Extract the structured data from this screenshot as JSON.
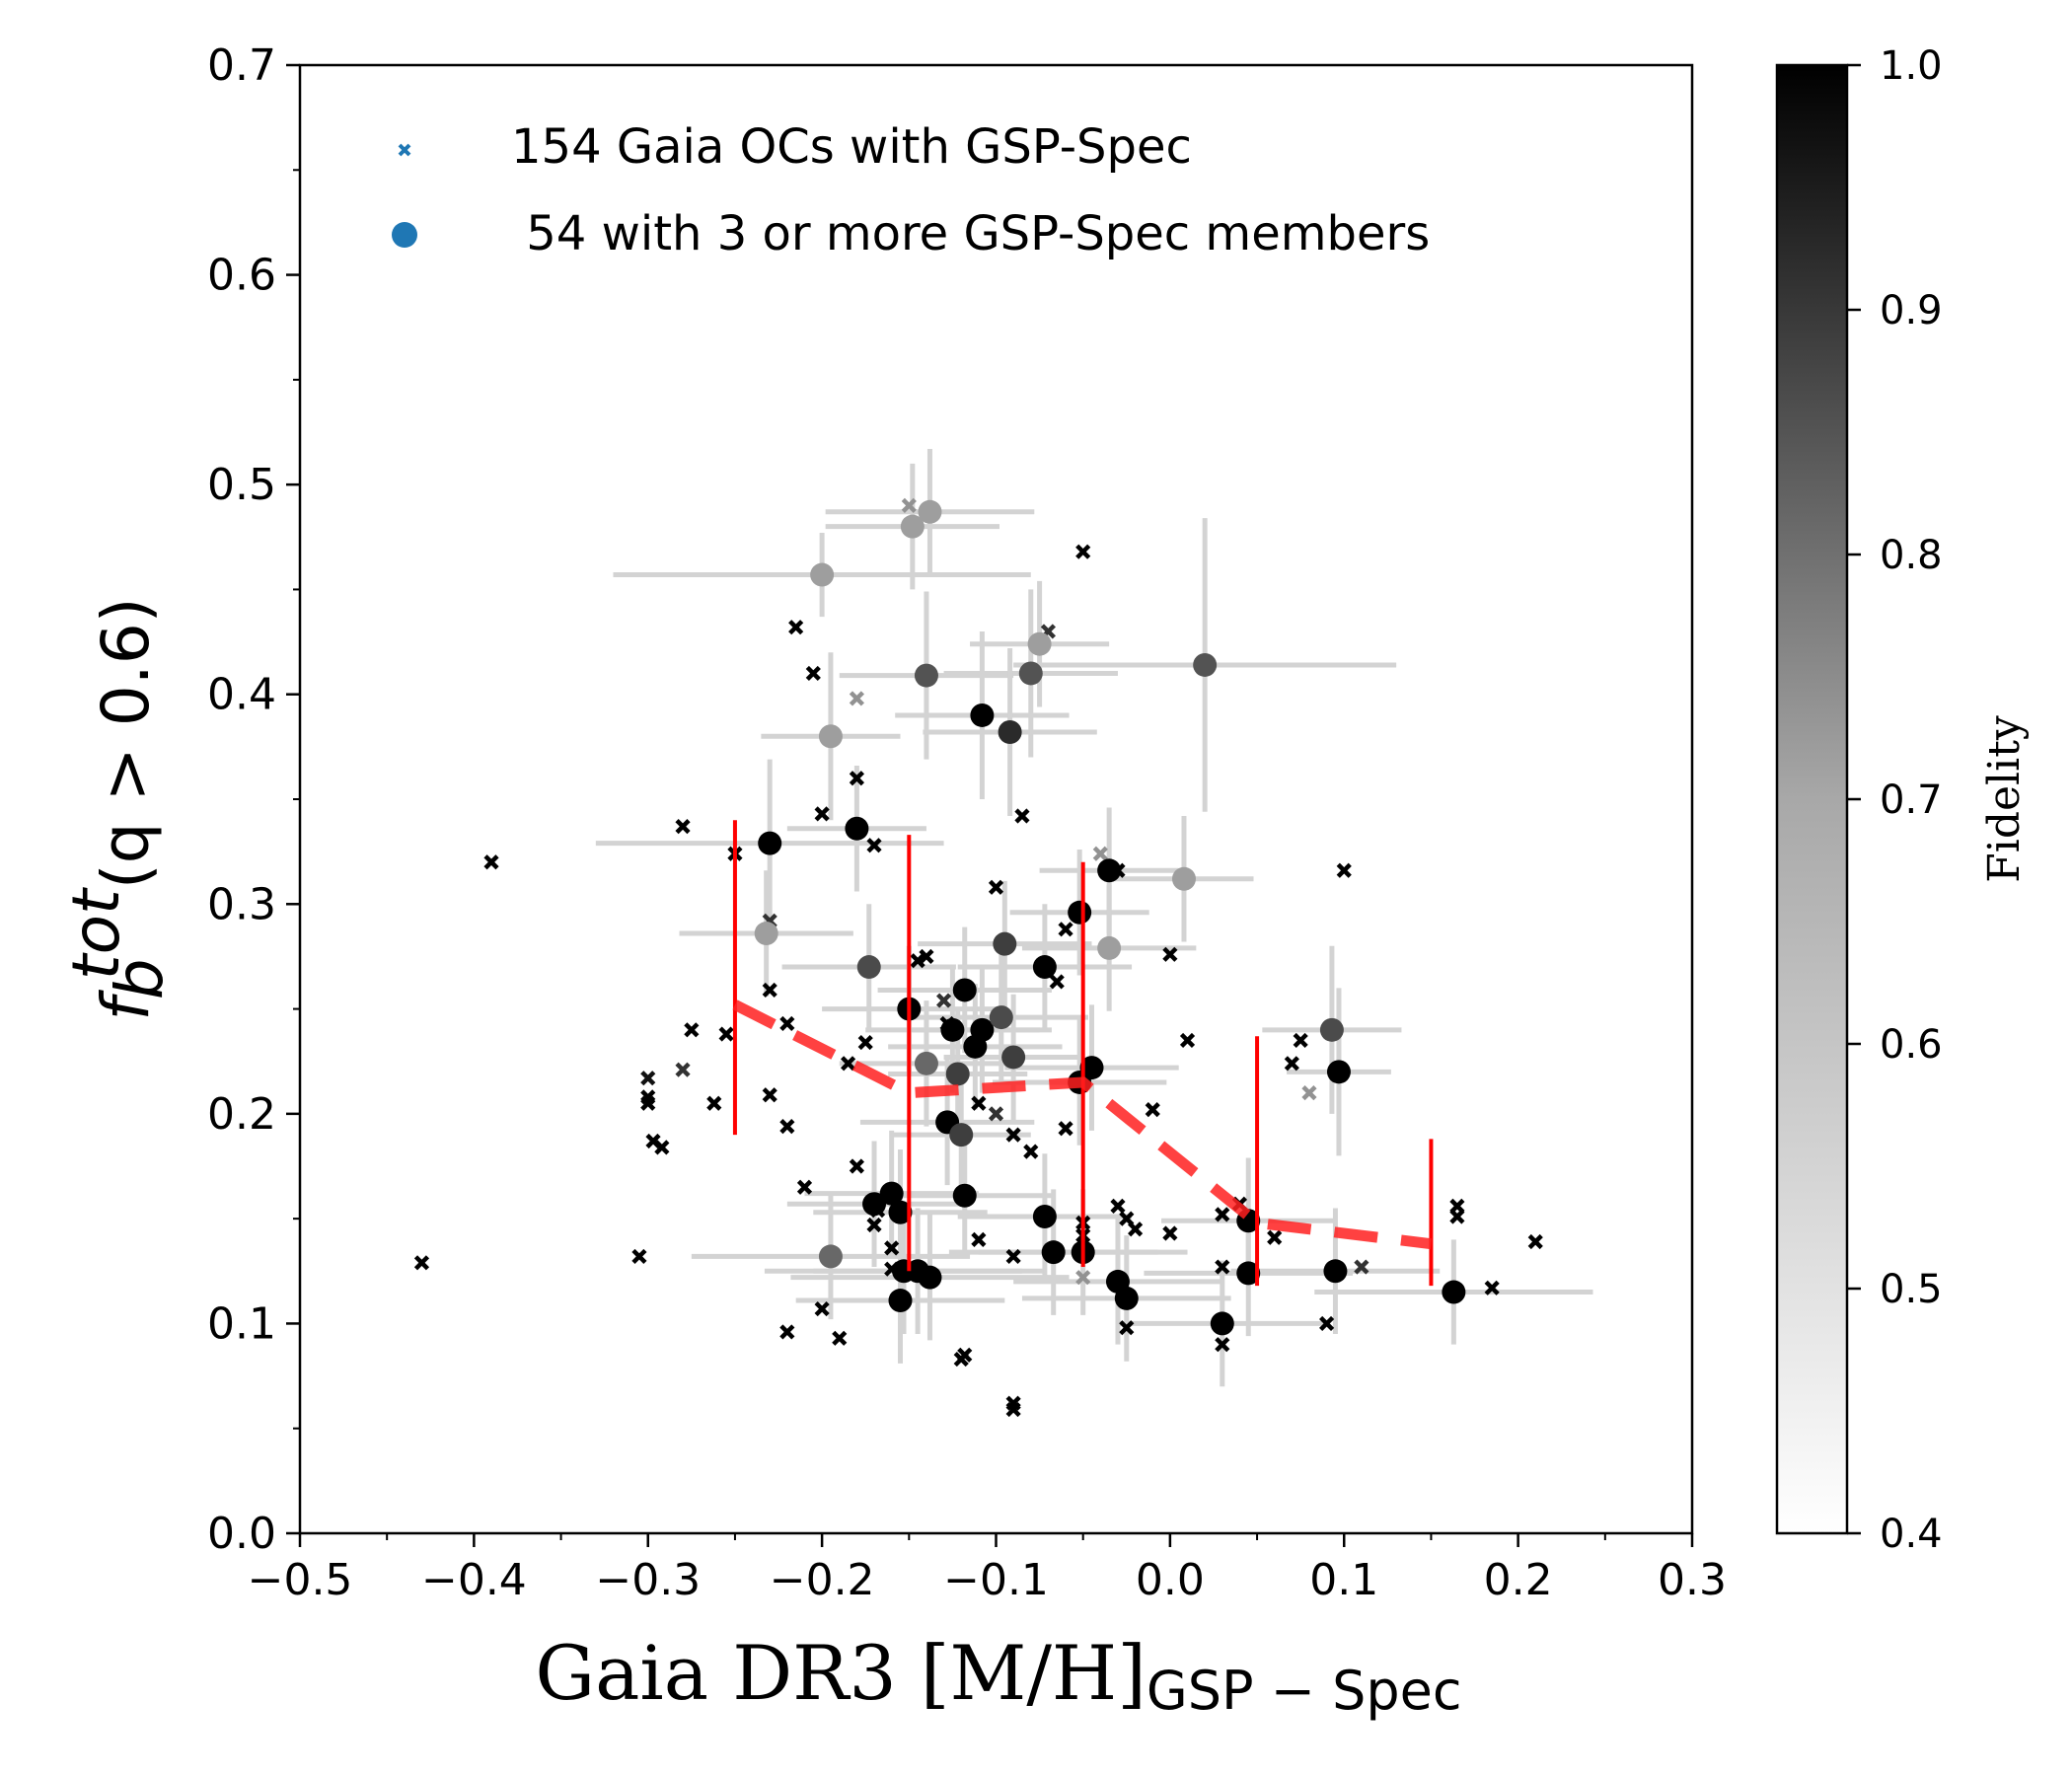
{
  "chart_data": {
    "type": "scatter",
    "xlabel": "Gaia DR3 [M/H]",
    "xlabel_sub": "GSP − Spec",
    "ylabel_f": "f",
    "ylabel_sub": "b",
    "ylabel_sup": "tot",
    "ylabel_rest": "(q > 0.6)",
    "xlim": [
      -0.5,
      0.3
    ],
    "ylim": [
      0.0,
      0.7
    ],
    "xticks": [
      -0.5,
      -0.4,
      -0.3,
      -0.2,
      -0.1,
      0.0,
      0.1,
      0.2,
      0.3
    ],
    "xtick_labels": [
      "−0.5",
      "−0.4",
      "−0.3",
      "−0.2",
      "−0.1",
      "0.0",
      "0.1",
      "0.2",
      "0.3"
    ],
    "yticks": [
      0.0,
      0.1,
      0.2,
      0.3,
      0.4,
      0.5,
      0.6,
      0.7
    ],
    "ytick_labels": [
      "0.0",
      "0.1",
      "0.2",
      "0.3",
      "0.4",
      "0.5",
      "0.6",
      "0.7"
    ],
    "grid": false,
    "legend_position": "top-left",
    "legend": [
      {
        "label": "154 Gaia OCs with GSP-Spec",
        "marker": "x",
        "color": "#1f77b4"
      },
      {
        "label": " 54 with 3 or more GSP-Spec members",
        "marker": "o",
        "color": "#1f77b4"
      }
    ],
    "colorbar": {
      "label": "Fidelity",
      "range": [
        0.4,
        1.0
      ],
      "ticks": [
        0.4,
        0.5,
        0.6,
        0.7,
        0.8,
        0.9,
        1.0
      ],
      "tick_labels": [
        "0.4",
        "0.5",
        "0.6",
        "0.7",
        "0.8",
        "0.9",
        "1.0"
      ],
      "colormap": "Greys"
    },
    "series": [
      {
        "name": "154 Gaia OCs with GSP-Spec",
        "marker": "x",
        "points": [
          [
            -0.43,
            0.129,
            1.0
          ],
          [
            -0.39,
            0.32,
            1.0
          ],
          [
            -0.305,
            0.132,
            1.0
          ],
          [
            -0.3,
            0.217,
            0.96
          ],
          [
            -0.3,
            0.208,
            1.0
          ],
          [
            -0.3,
            0.205,
            1.0
          ],
          [
            -0.297,
            0.187,
            1.0
          ],
          [
            -0.292,
            0.184,
            1.0
          ],
          [
            -0.28,
            0.337,
            1.0
          ],
          [
            -0.28,
            0.221,
            0.88
          ],
          [
            -0.275,
            0.24,
            1.0
          ],
          [
            -0.262,
            0.205,
            1.0
          ],
          [
            -0.255,
            0.238,
            1.0
          ],
          [
            -0.25,
            0.324,
            1.0
          ],
          [
            -0.23,
            0.292,
            0.88
          ],
          [
            -0.23,
            0.259,
            1.0
          ],
          [
            -0.23,
            0.209,
            1.0
          ],
          [
            -0.22,
            0.243,
            1.0
          ],
          [
            -0.22,
            0.194,
            1.0
          ],
          [
            -0.22,
            0.096,
            1.0
          ],
          [
            -0.215,
            0.432,
            1.0
          ],
          [
            -0.21,
            0.165,
            1.0
          ],
          [
            -0.205,
            0.41,
            1.0
          ],
          [
            -0.2,
            0.343,
            1.0
          ],
          [
            -0.2,
            0.107,
            1.0
          ],
          [
            -0.19,
            0.093,
            1.0
          ],
          [
            -0.185,
            0.224,
            1.0
          ],
          [
            -0.18,
            0.36,
            1.0
          ],
          [
            -0.18,
            0.175,
            1.0
          ],
          [
            -0.18,
            0.398,
            0.65
          ],
          [
            -0.175,
            0.234,
            1.0
          ],
          [
            -0.17,
            0.328,
            1.0
          ],
          [
            -0.17,
            0.147,
            1.0
          ],
          [
            -0.168,
            0.154,
            1.0
          ],
          [
            -0.16,
            0.126,
            1.0
          ],
          [
            -0.16,
            0.136,
            1.0
          ],
          [
            -0.15,
            0.49,
            0.65
          ],
          [
            -0.145,
            0.273,
            1.0
          ],
          [
            -0.14,
            0.275,
            1.0
          ],
          [
            -0.13,
            0.254,
            0.88
          ],
          [
            -0.128,
            0.243,
            1.0
          ],
          [
            -0.12,
            0.083,
            1.0
          ],
          [
            -0.118,
            0.085,
            1.0
          ],
          [
            -0.11,
            0.14,
            1.0
          ],
          [
            -0.11,
            0.205,
            1.0
          ],
          [
            -0.1,
            0.308,
            1.0
          ],
          [
            -0.1,
            0.2,
            0.88
          ],
          [
            -0.09,
            0.062,
            1.0
          ],
          [
            -0.09,
            0.059,
            1.0
          ],
          [
            -0.09,
            0.132,
            1.0
          ],
          [
            -0.09,
            0.19,
            1.0
          ],
          [
            -0.085,
            0.342,
            1.0
          ],
          [
            -0.08,
            0.182,
            1.0
          ],
          [
            -0.07,
            0.43,
            0.88
          ],
          [
            -0.065,
            0.263,
            1.0
          ],
          [
            -0.06,
            0.193,
            1.0
          ],
          [
            -0.06,
            0.288,
            1.0
          ],
          [
            -0.05,
            0.122,
            0.65
          ],
          [
            -0.05,
            0.142,
            1.0
          ],
          [
            -0.05,
            0.148,
            1.0
          ],
          [
            -0.05,
            0.468,
            1.0
          ],
          [
            -0.04,
            0.324,
            0.65
          ],
          [
            -0.03,
            0.156,
            1.0
          ],
          [
            -0.03,
            0.316,
            1.0
          ],
          [
            -0.025,
            0.15,
            1.0
          ],
          [
            -0.025,
            0.098,
            1.0
          ],
          [
            -0.02,
            0.145,
            1.0
          ],
          [
            -0.01,
            0.202,
            1.0
          ],
          [
            0.0,
            0.143,
            1.0
          ],
          [
            0.0,
            0.276,
            1.0
          ],
          [
            0.01,
            0.235,
            1.0
          ],
          [
            0.03,
            0.152,
            1.0
          ],
          [
            0.03,
            0.09,
            1.0
          ],
          [
            0.03,
            0.127,
            1.0
          ],
          [
            0.04,
            0.157,
            1.0
          ],
          [
            0.06,
            0.141,
            1.0
          ],
          [
            0.07,
            0.224,
            1.0
          ],
          [
            0.075,
            0.235,
            1.0
          ],
          [
            0.08,
            0.21,
            0.65
          ],
          [
            0.09,
            0.1,
            1.0
          ],
          [
            0.1,
            0.316,
            1.0
          ],
          [
            0.11,
            0.127,
            0.88
          ],
          [
            0.165,
            0.156,
            1.0
          ],
          [
            0.165,
            0.151,
            1.0
          ],
          [
            0.185,
            0.117,
            1.0
          ],
          [
            0.21,
            0.139,
            1.0
          ]
        ]
      },
      {
        "name": " 54 with 3 or more GSP-Spec members",
        "marker": "o",
        "points": [
          [
            -0.2,
            0.457,
            0.62,
            0.12,
            0.02
          ],
          [
            -0.148,
            0.48,
            0.62,
            0.05,
            0.03
          ],
          [
            -0.138,
            0.487,
            0.62,
            0.06,
            0.03
          ],
          [
            -0.075,
            0.424,
            0.62,
            0.04,
            0.03
          ],
          [
            -0.14,
            0.409,
            0.8,
            0.05,
            0.04
          ],
          [
            -0.08,
            0.41,
            0.8,
            0.05,
            0.04
          ],
          [
            0.02,
            0.414,
            0.8,
            0.11,
            0.07
          ],
          [
            -0.195,
            0.38,
            0.62,
            0.04,
            0.04
          ],
          [
            -0.108,
            0.39,
            1.0,
            0.05,
            0.04
          ],
          [
            -0.092,
            0.382,
            0.9,
            0.05,
            0.04
          ],
          [
            -0.23,
            0.329,
            1.0,
            0.1,
            0.04
          ],
          [
            -0.18,
            0.336,
            1.0,
            0.04,
            0.03
          ],
          [
            -0.035,
            0.316,
            1.0,
            0.04,
            0.03
          ],
          [
            0.008,
            0.312,
            0.62,
            0.04,
            0.03
          ],
          [
            -0.052,
            0.296,
            1.0,
            0.04,
            0.03
          ],
          [
            -0.232,
            0.286,
            0.62,
            0.05,
            0.03
          ],
          [
            -0.035,
            0.279,
            0.62,
            0.05,
            0.03
          ],
          [
            -0.095,
            0.281,
            0.85,
            0.05,
            0.03
          ],
          [
            -0.072,
            0.27,
            1.0,
            0.05,
            0.03
          ],
          [
            -0.173,
            0.27,
            0.82,
            0.05,
            0.03
          ],
          [
            -0.118,
            0.259,
            1.0,
            0.05,
            0.03
          ],
          [
            -0.15,
            0.25,
            1.0,
            0.05,
            0.03
          ],
          [
            -0.125,
            0.24,
            1.0,
            0.05,
            0.03
          ],
          [
            -0.108,
            0.24,
            1.0,
            0.04,
            0.03
          ],
          [
            -0.097,
            0.246,
            0.82,
            0.05,
            0.03
          ],
          [
            -0.112,
            0.232,
            1.0,
            0.05,
            0.03
          ],
          [
            -0.09,
            0.227,
            0.85,
            0.04,
            0.03
          ],
          [
            -0.14,
            0.224,
            0.75,
            0.05,
            0.03
          ],
          [
            -0.122,
            0.219,
            0.85,
            0.04,
            0.03
          ],
          [
            -0.052,
            0.215,
            1.0,
            0.05,
            0.03
          ],
          [
            -0.045,
            0.222,
            1.0,
            0.05,
            0.03
          ],
          [
            0.093,
            0.24,
            0.82,
            0.04,
            0.04
          ],
          [
            0.097,
            0.22,
            1.0,
            0.03,
            0.04
          ],
          [
            -0.128,
            0.196,
            1.0,
            0.05,
            0.03
          ],
          [
            -0.12,
            0.19,
            0.85,
            0.04,
            0.03
          ],
          [
            -0.16,
            0.162,
            1.0,
            0.05,
            0.03
          ],
          [
            -0.17,
            0.157,
            1.0,
            0.05,
            0.03
          ],
          [
            -0.155,
            0.153,
            1.0,
            0.05,
            0.03
          ],
          [
            -0.118,
            0.161,
            1.0,
            0.05,
            0.03
          ],
          [
            -0.072,
            0.151,
            1.0,
            0.05,
            0.03
          ],
          [
            0.045,
            0.149,
            1.0,
            0.05,
            0.03
          ],
          [
            -0.153,
            0.125,
            1.0,
            0.08,
            0.03
          ],
          [
            -0.138,
            0.122,
            1.0,
            0.08,
            0.03
          ],
          [
            -0.155,
            0.111,
            1.0,
            0.06,
            0.03
          ],
          [
            -0.067,
            0.134,
            1.0,
            0.06,
            0.03
          ],
          [
            -0.05,
            0.134,
            1.0,
            0.06,
            0.03
          ],
          [
            -0.03,
            0.12,
            1.0,
            0.06,
            0.03
          ],
          [
            -0.025,
            0.112,
            1.0,
            0.06,
            0.03
          ],
          [
            0.045,
            0.124,
            1.0,
            0.06,
            0.03
          ],
          [
            0.095,
            0.125,
            1.0,
            0.06,
            0.03
          ],
          [
            0.03,
            0.1,
            1.0,
            0.06,
            0.03
          ],
          [
            0.163,
            0.115,
            1.0,
            0.08,
            0.025
          ],
          [
            -0.195,
            0.132,
            0.75,
            0.08,
            0.03
          ],
          [
            -0.145,
            0.125,
            1.0,
            0.06,
            0.03
          ]
        ]
      },
      {
        "name": "binned trend",
        "type": "line",
        "color": "#ff0000",
        "x": [
          -0.25,
          -0.15,
          -0.05,
          0.05,
          0.15
        ],
        "y": [
          0.252,
          0.21,
          0.215,
          0.148,
          0.138
        ],
        "err_low": [
          0.19,
          0.125,
          0.127,
          0.118,
          0.118
        ],
        "err_high": [
          0.34,
          0.333,
          0.32,
          0.237,
          0.188
        ]
      }
    ]
  }
}
